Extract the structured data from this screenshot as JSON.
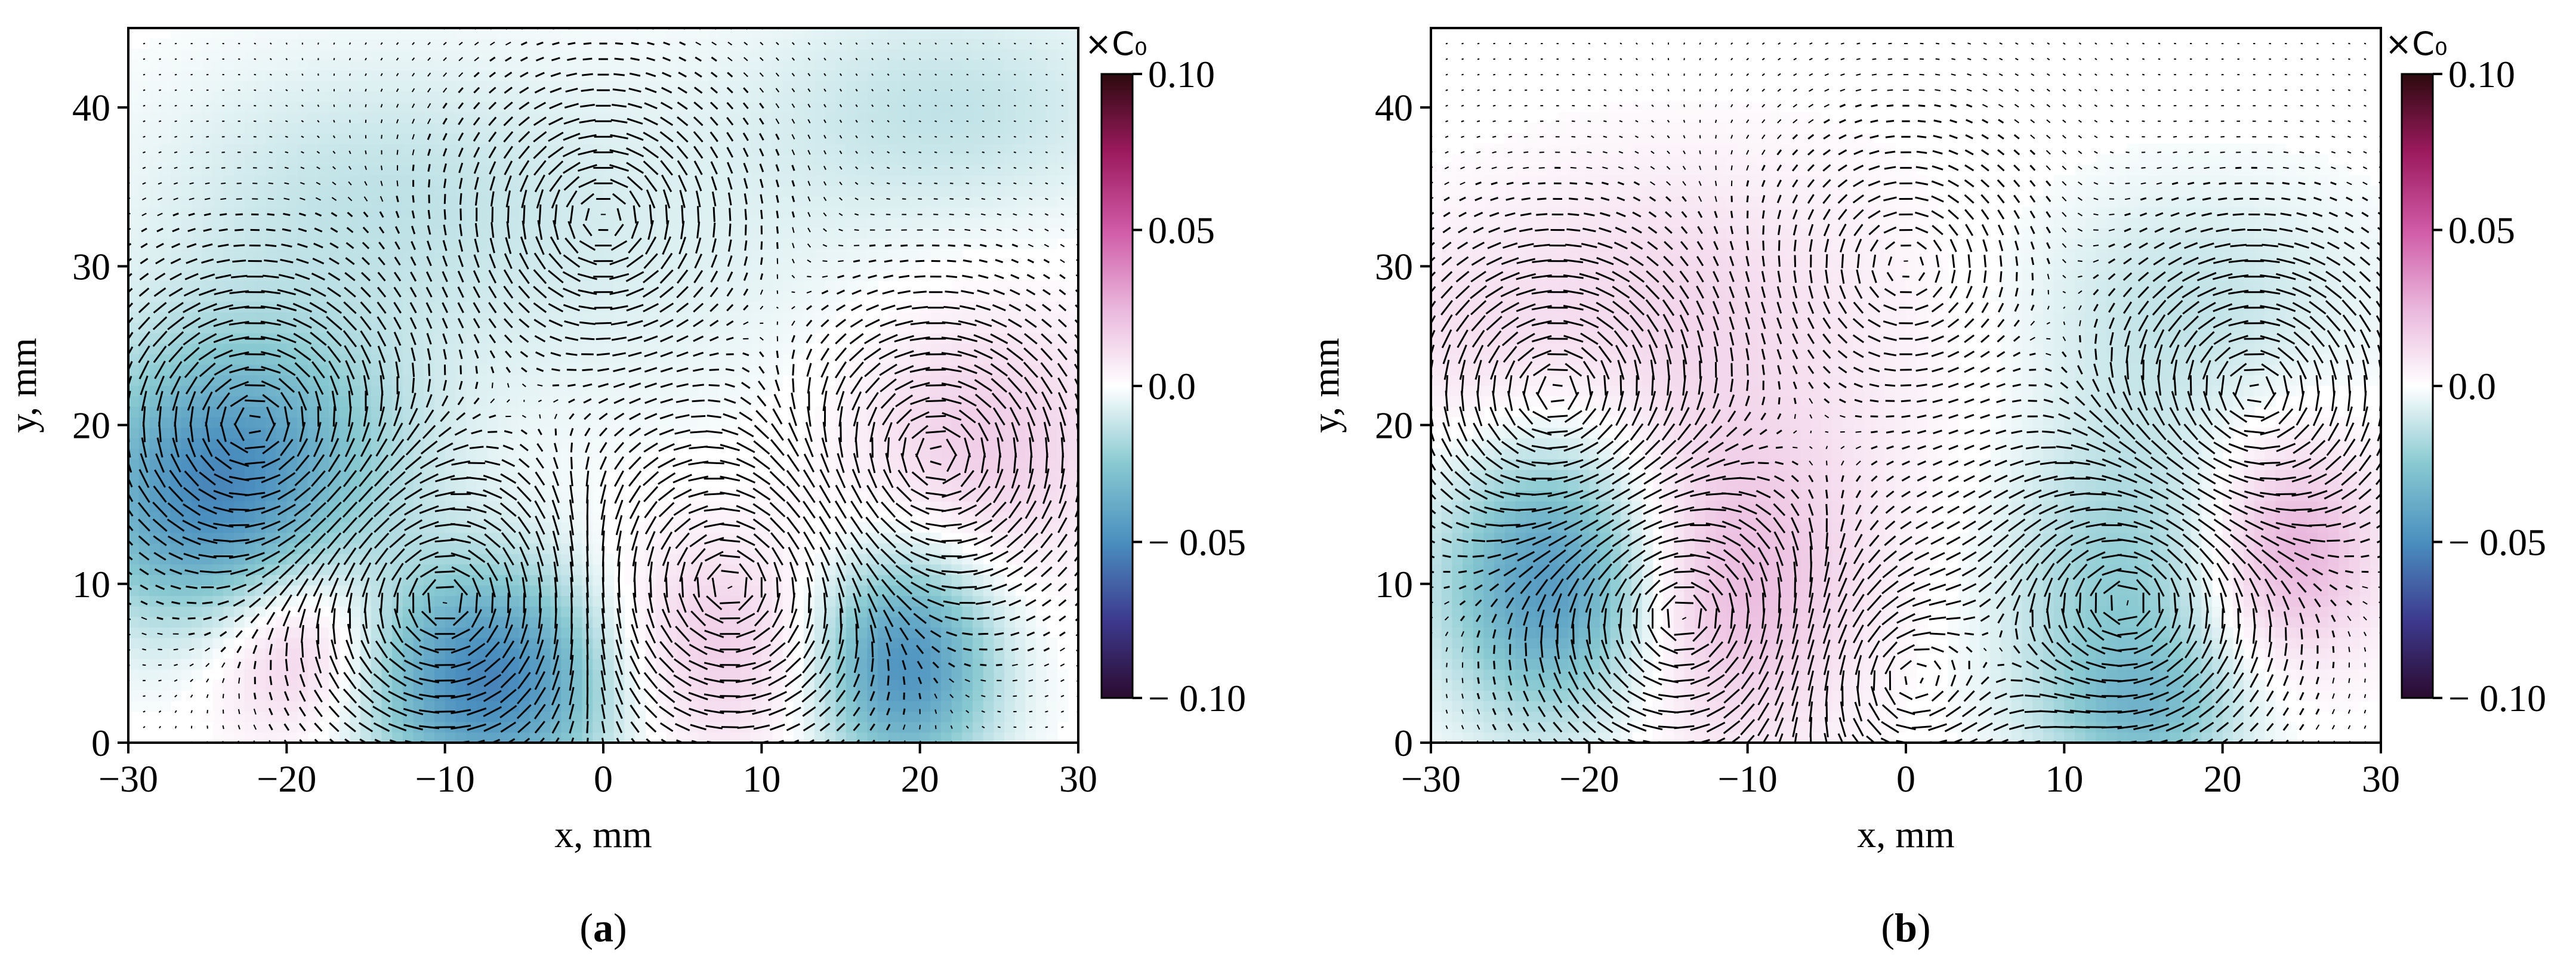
{
  "chart_data": [
    {
      "type": "heatmap",
      "panel_label": "(a)",
      "panel_letter": "a",
      "xlabel": "x, mm",
      "ylabel": "y, mm",
      "xlim": [
        -30,
        30
      ],
      "ylim": [
        0,
        45
      ],
      "xticks": [
        -30,
        -20,
        -10,
        0,
        10,
        20,
        30
      ],
      "yticks": [
        0,
        10,
        20,
        30,
        40
      ],
      "xtick_labels": [
        "−30",
        "−20",
        "−10",
        "0",
        "10",
        "20",
        "30"
      ],
      "ytick_labels": [
        "0",
        "10",
        "20",
        "30",
        "40"
      ],
      "overlay": "velocity vector field (quiver)",
      "colorbar": {
        "unit": "×C₀",
        "range": [
          -0.1,
          0.1
        ],
        "ticks": [
          0.1,
          0.05,
          0.0,
          -0.05,
          -0.1
        ],
        "tick_labels": [
          "0.10",
          "0.05",
          "0.0",
          "− 0.05",
          "− 0.10"
        ],
        "colors": [
          "#2b0a2e",
          "#3d3a8f",
          "#4a8fbf",
          "#88c9d1",
          "#ffffff",
          "#e9b6dc",
          "#d05aa6",
          "#9c1a5e",
          "#2b0a0e"
        ]
      },
      "blobs": [
        {
          "x": -23,
          "y": 18,
          "amp": -0.04,
          "sx": 7,
          "sy": 6
        },
        {
          "x": -26,
          "y": 13,
          "amp": -0.02,
          "sx": 5,
          "sy": 5
        },
        {
          "x": -19,
          "y": 6,
          "amp": 0.025,
          "sx": 4,
          "sy": 4
        },
        {
          "x": -7,
          "y": 4,
          "amp": -0.055,
          "sx": 6,
          "sy": 5
        },
        {
          "x": 6,
          "y": 6,
          "amp": 0.02,
          "sx": 6,
          "sy": 5
        },
        {
          "x": 19,
          "y": 5,
          "amp": -0.05,
          "sx": 4,
          "sy": 5
        },
        {
          "x": 24,
          "y": 19,
          "amp": 0.018,
          "sx": 6,
          "sy": 6
        },
        {
          "x": 22,
          "y": 40,
          "amp": -0.012,
          "sx": 9,
          "sy": 5
        },
        {
          "x": -15,
          "y": 35,
          "amp": -0.01,
          "sx": 10,
          "sy": 6
        },
        {
          "x": 0,
          "y": 30,
          "amp": -0.006,
          "sx": 15,
          "sy": 8
        }
      ],
      "vortices": [
        {
          "x": -22,
          "y": 20,
          "g": 5
        },
        {
          "x": -10,
          "y": 9,
          "g": -5
        },
        {
          "x": 8,
          "y": 10,
          "g": 5
        },
        {
          "x": 21,
          "y": 18,
          "g": -5
        },
        {
          "x": 0,
          "y": 33,
          "g": -3
        }
      ]
    },
    {
      "type": "heatmap",
      "panel_label": "(b)",
      "panel_letter": "b",
      "xlabel": "x, mm",
      "ylabel": "y, mm",
      "xlim": [
        -30,
        30
      ],
      "ylim": [
        0,
        45
      ],
      "xticks": [
        -30,
        -20,
        -10,
        0,
        10,
        20,
        30
      ],
      "yticks": [
        0,
        10,
        20,
        30,
        40
      ],
      "xtick_labels": [
        "−30",
        "−20",
        "−10",
        "0",
        "10",
        "20",
        "30"
      ],
      "ytick_labels": [
        "0",
        "10",
        "20",
        "30",
        "40"
      ],
      "overlay": "velocity vector field (quiver)",
      "colorbar": {
        "unit": "×C₀",
        "range": [
          -0.1,
          0.1
        ],
        "ticks": [
          0.1,
          0.05,
          0.0,
          -0.05,
          -0.1
        ],
        "tick_labels": [
          "0.10",
          "0.05",
          "0.0",
          "− 0.05",
          "− 0.10"
        ],
        "colors": [
          "#2b0a2e",
          "#3d3a8f",
          "#4a8fbf",
          "#88c9d1",
          "#ffffff",
          "#e9b6dc",
          "#d05aa6",
          "#9c1a5e",
          "#2b0a0e"
        ]
      },
      "blobs": [
        {
          "x": -22,
          "y": 10,
          "amp": -0.05,
          "sx": 5,
          "sy": 6
        },
        {
          "x": -12,
          "y": 10,
          "amp": 0.025,
          "sx": 6,
          "sy": 7
        },
        {
          "x": -15,
          "y": 28,
          "amp": 0.012,
          "sx": 8,
          "sy": 6
        },
        {
          "x": -28,
          "y": 25,
          "amp": 0.008,
          "sx": 5,
          "sy": 5
        },
        {
          "x": 14,
          "y": 10,
          "amp": -0.025,
          "sx": 6,
          "sy": 8
        },
        {
          "x": 24,
          "y": 12,
          "amp": 0.03,
          "sx": 4,
          "sy": 5
        },
        {
          "x": 18,
          "y": 28,
          "amp": -0.012,
          "sx": 8,
          "sy": 5
        },
        {
          "x": 15,
          "y": 2,
          "amp": -0.02,
          "sx": 4,
          "sy": 3
        },
        {
          "x": 0,
          "y": 20,
          "amp": 0.004,
          "sx": 10,
          "sy": 10
        }
      ],
      "vortices": [
        {
          "x": -22,
          "y": 22,
          "g": -5
        },
        {
          "x": -14,
          "y": 8,
          "g": 5
        },
        {
          "x": 0,
          "y": 4,
          "g": -3
        },
        {
          "x": 14,
          "y": 9,
          "g": -5
        },
        {
          "x": 22,
          "y": 22,
          "g": 5
        },
        {
          "x": 0,
          "y": 30,
          "g": 2
        }
      ]
    }
  ]
}
